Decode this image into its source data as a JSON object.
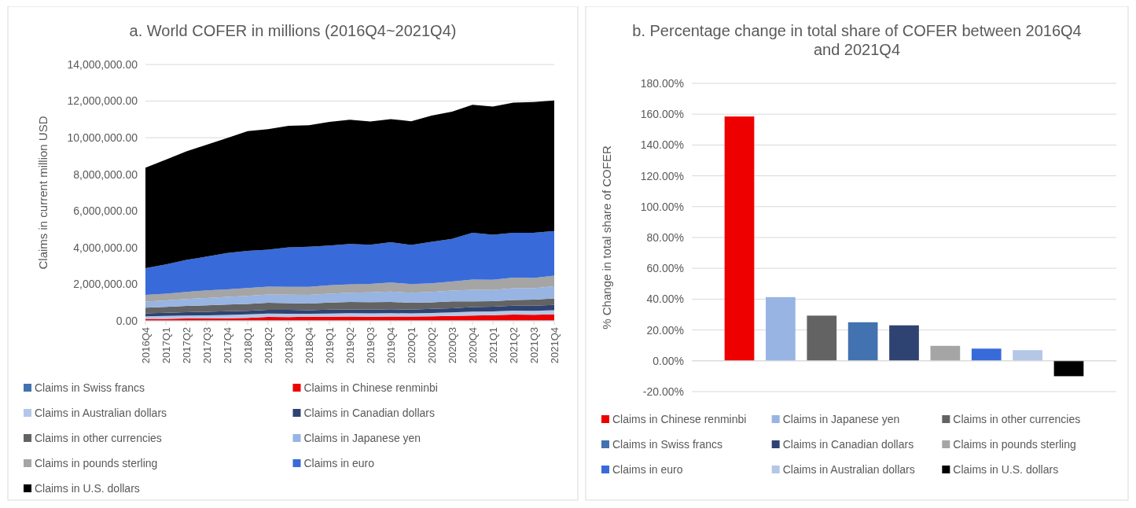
{
  "chart_data": [
    {
      "type": "area",
      "stacked": true,
      "title": "a. World COFER in millions (2016Q4~2021Q4)",
      "ylabel": "Claims in current million USD",
      "categories": [
        "2016Q4",
        "2017Q1",
        "2017Q2",
        "2017Q3",
        "2017Q4",
        "2018Q1",
        "2018Q2",
        "2018Q3",
        "2018Q4",
        "2019Q1",
        "2019Q2",
        "2019Q3",
        "2019Q4",
        "2020Q1",
        "2020Q2",
        "2020Q3",
        "2020Q4",
        "2021Q1",
        "2021Q2",
        "2021Q3",
        "2021Q4"
      ],
      "ylim": [
        0,
        14000000
      ],
      "yticks": [
        {
          "value": 0,
          "label": "0.00"
        },
        {
          "value": 2000000,
          "label": "2,000,000.00"
        },
        {
          "value": 4000000,
          "label": "4,000,000.00"
        },
        {
          "value": 6000000,
          "label": "6,000,000.00"
        },
        {
          "value": 8000000,
          "label": "8,000,000.00"
        },
        {
          "value": 10000000,
          "label": "10,000,000.00"
        },
        {
          "value": 12000000,
          "label": "12,000,000.00"
        },
        {
          "value": 14000000,
          "label": "14,000,000.00"
        }
      ],
      "grid": "y",
      "legend": "bottom",
      "series": [
        {
          "name": "Claims in Swiss francs",
          "color": "#4372b0",
          "values": [
            14000,
            15000,
            16000,
            17000,
            18000,
            19000,
            18000,
            19000,
            19000,
            18000,
            18000,
            19000,
            18000,
            18000,
            19000,
            20000,
            20000,
            21000,
            21000,
            21000,
            21000
          ]
        },
        {
          "name": "Claims in Chinese renminbi",
          "color": "#ee0000",
          "values": [
            91000,
            96000,
            108000,
            113000,
            123000,
            145000,
            193000,
            190000,
            203000,
            212000,
            219000,
            209000,
            218000,
            221000,
            229000,
            245000,
            272000,
            287000,
            320000,
            310000,
            337000
          ]
        },
        {
          "name": "Claims in Australian dollars",
          "color": "#b4c7e7",
          "values": [
            142000,
            155000,
            163000,
            171000,
            181000,
            185000,
            184000,
            182000,
            163000,
            171000,
            179000,
            179000,
            185000,
            166000,
            180000,
            192000,
            213000,
            205000,
            219000,
            217000,
            221000
          ]
        },
        {
          "name": "Claims in Canadian dollars",
          "color": "#2e4372",
          "values": [
            162000,
            175000,
            184000,
            197000,
            203000,
            202000,
            207000,
            208000,
            198000,
            208000,
            209000,
            210000,
            209000,
            207000,
            222000,
            233000,
            247000,
            255000,
            266000,
            275000,
            290000
          ]
        },
        {
          "name": "Claims in other currencies",
          "color": "#636363",
          "values": [
            308000,
            322000,
            342000,
            350000,
            362000,
            374000,
            386000,
            367000,
            367000,
            385000,
            405000,
            400000,
            406000,
            379000,
            361000,
            373000,
            308000,
            310000,
            313000,
            340000,
            360000
          ]
        },
        {
          "name": "Claims in Japanese yen",
          "color": "#97b4e3",
          "values": [
            333000,
            350000,
            378000,
            402000,
            418000,
            440000,
            450000,
            460000,
            467000,
            488000,
            510000,
            536000,
            561000,
            548000,
            562000,
            589000,
            634000,
            604000,
            638000,
            614000,
            662000
          ]
        },
        {
          "name": "Claims in pounds sterling",
          "color": "#a5a5a5",
          "values": [
            364000,
            371000,
            391000,
            411000,
            416000,
            425000,
            429000,
            436000,
            441000,
            458000,
            461000,
            466000,
            495000,
            474000,
            476000,
            496000,
            560000,
            566000,
            580000,
            568000,
            579000
          ]
        },
        {
          "name": "Claims in euro",
          "color": "#386bd9",
          "values": [
            1466000,
            1596000,
            1748000,
            1849000,
            1979000,
            2030000,
            2023000,
            2158000,
            2192000,
            2170000,
            2199000,
            2141000,
            2198000,
            2127000,
            2271000,
            2332000,
            2556000,
            2453000,
            2453000,
            2465000,
            2440000
          ]
        },
        {
          "name": "Claims in U.S. dollars",
          "color": "#000000",
          "values": [
            5480000,
            5720000,
            5920000,
            6110000,
            6290000,
            6540000,
            6580000,
            6630000,
            6630000,
            6750000,
            6780000,
            6730000,
            6730000,
            6760000,
            6890000,
            6940000,
            6990000,
            7000000,
            7110000,
            7140000,
            7120000
          ]
        }
      ]
    },
    {
      "type": "bar",
      "title": "b. Percentage change in total share of COFER between 2016Q4 and 2021Q4",
      "ylabel": "% Change in total share of COFER",
      "categories": [
        null
      ],
      "ylim": [
        -20,
        180
      ],
      "yticks": [
        {
          "value": -20,
          "label": "-20.00%"
        },
        {
          "value": 0,
          "label": "0.00%"
        },
        {
          "value": 20,
          "label": "20.00%"
        },
        {
          "value": 40,
          "label": "40.00%"
        },
        {
          "value": 60,
          "label": "60.00%"
        },
        {
          "value": 80,
          "label": "80.00%"
        },
        {
          "value": 100,
          "label": "100.00%"
        },
        {
          "value": 120,
          "label": "120.00%"
        },
        {
          "value": 140,
          "label": "140.00%"
        },
        {
          "value": 160,
          "label": "160.00%"
        },
        {
          "value": 180,
          "label": "180.00%"
        }
      ],
      "grid": "y",
      "legend": "bottom",
      "series": [
        {
          "name": "Claims in Chinese renminbi",
          "color": "#ee0000",
          "values": [
            158.5
          ]
        },
        {
          "name": "Claims in Japanese yen",
          "color": "#97b4e3",
          "values": [
            41.3
          ]
        },
        {
          "name": "Claims in other currencies",
          "color": "#636363",
          "values": [
            29.3
          ]
        },
        {
          "name": "Claims in Swiss francs",
          "color": "#4372b0",
          "values": [
            25.0
          ]
        },
        {
          "name": "Claims in Canadian dollars",
          "color": "#2e4372",
          "values": [
            23.0
          ]
        },
        {
          "name": "Claims in pounds sterling",
          "color": "#a5a5a5",
          "values": [
            9.7
          ]
        },
        {
          "name": "Claims in euro",
          "color": "#386bd9",
          "values": [
            7.9
          ]
        },
        {
          "name": "Claims in Australian dollars",
          "color": "#b4c7e7",
          "values": [
            6.9
          ]
        },
        {
          "name": "Claims in U.S. dollars",
          "color": "#000000",
          "values": [
            -10.0
          ]
        }
      ]
    }
  ]
}
